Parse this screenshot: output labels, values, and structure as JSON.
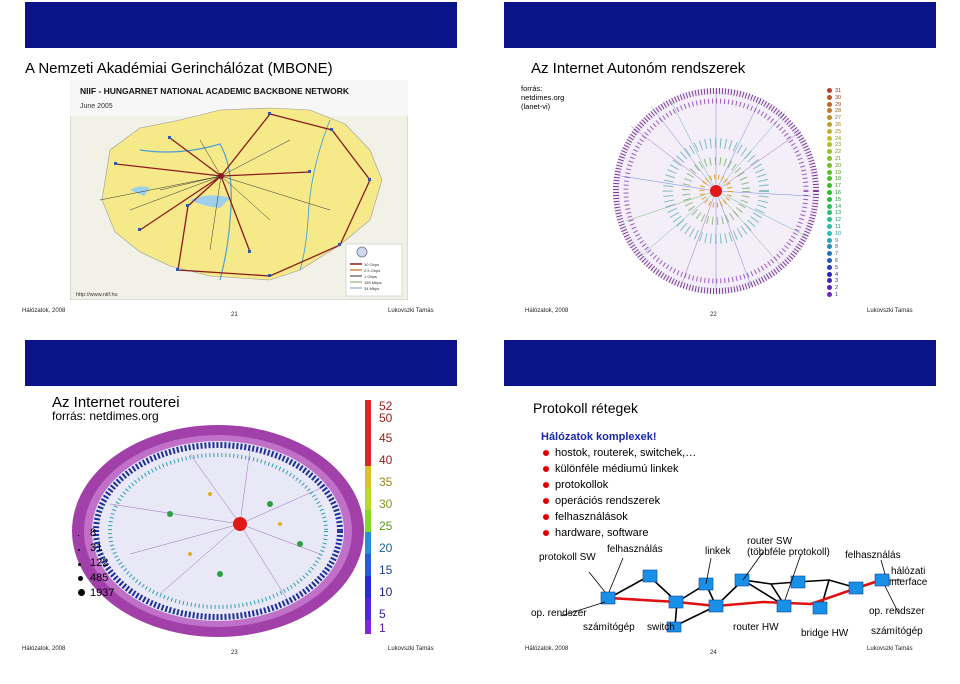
{
  "footer": {
    "left": "Hálózatok, 2008",
    "right": "Lukovszki Tamás"
  },
  "slide21": {
    "title": "A Nemzeti Akadémiai Gerinchálózat (MBONE)",
    "map_title": "NIIF - HUNGARNET NATIONAL ACADEMIC BACKBONE NETWORK",
    "map_date": "June 2005",
    "map_url": "http://www.niif.hu",
    "legend": [
      "10 Gbps",
      "2.5 Gbps",
      "1 Gbps",
      "155 Mbps",
      "34 Mbps"
    ],
    "page": "21"
  },
  "slide22": {
    "title": "Az Internet  Autonóm rendszerek",
    "source": "forrás:\nnetdimes.org\n(lanet-vi)",
    "scale": [
      "31",
      "30",
      "29",
      "28",
      "27",
      "26",
      "25",
      "24",
      "23",
      "22",
      "21",
      "20",
      "19",
      "18",
      "17",
      "16",
      "15",
      "14",
      "13",
      "12",
      "11",
      "10",
      "9",
      "8",
      "7",
      "6",
      "5",
      "4",
      "3",
      "2",
      "1"
    ],
    "page": "22"
  },
  "slide23": {
    "title": "Az Internet routerei",
    "source": "forrás: netdimes.org",
    "degrees": [
      "8",
      "31",
      "122",
      "485",
      "1937"
    ],
    "scale": [
      "52",
      "50",
      "45",
      "40",
      "35",
      "30",
      "25",
      "20",
      "15",
      "10",
      "5",
      "1"
    ],
    "page": "23"
  },
  "slide24": {
    "title": "Protokoll rétegek",
    "lead": "Hálózatok komplexek!",
    "bullets": [
      "hostok, routerek, switchek,…",
      "különféle médiumú linkek",
      "protokollok",
      "operációs rendszerek",
      "felhasználások",
      "hardware, software"
    ],
    "labels": {
      "protokoll_sw": "protokoll SW",
      "felhasznalas1": "felhasználás",
      "linkek": "linkek",
      "router_sw": "router SW\n(többféle protokoll)",
      "felhasznalas2": "felhasználás",
      "halozati": "hálózati\ninterface",
      "op_rendszer1": "op. rendszer",
      "op_rendszer2": "op. rendszer",
      "szamitogep1": "számítógép",
      "switch": "switch",
      "router_hw": "router HW",
      "bridge_hw": "bridge HW",
      "szamitogep2": "számítógép"
    },
    "page": "24"
  }
}
